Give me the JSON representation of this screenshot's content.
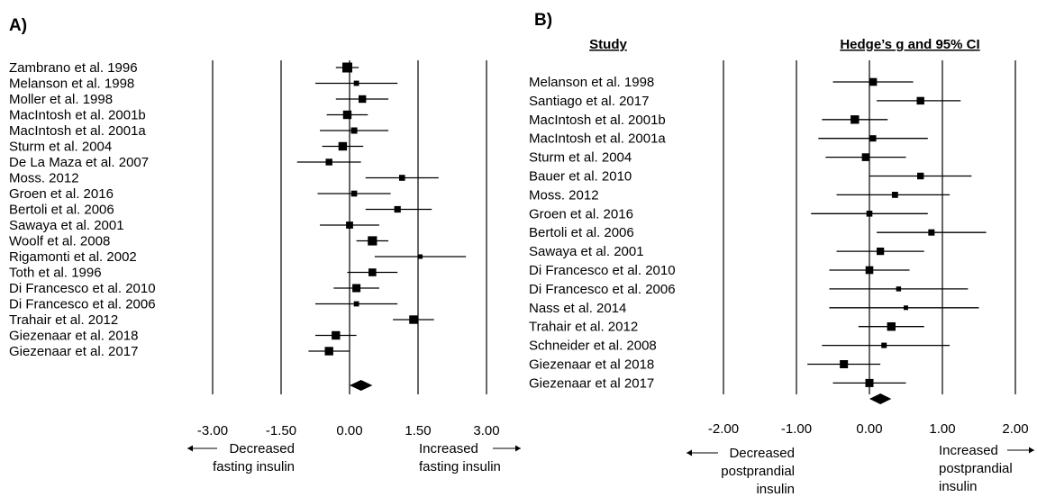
{
  "chart_data": [
    {
      "type": "forest",
      "panel_label": "A)",
      "xlim": [
        -3.0,
        3.0
      ],
      "x_ticks": [
        "-3.00",
        "-1.50",
        "0.00",
        "1.50",
        "3.00"
      ],
      "x_tick_values": [
        -3.0,
        -1.5,
        0.0,
        1.5,
        3.0
      ],
      "left_note": [
        "Decreased",
        "fasting insulin"
      ],
      "right_note": [
        "Increased",
        "fasting insulin"
      ],
      "studies": [
        {
          "label": "Zambrano et al. 1996",
          "g": -0.05,
          "lo": -0.3,
          "hi": 0.2
        },
        {
          "label": "Melanson et al. 1998",
          "g": 0.15,
          "lo": -0.75,
          "hi": 1.05
        },
        {
          "label": "Moller et al. 1998",
          "g": 0.28,
          "lo": -0.3,
          "hi": 0.85
        },
        {
          "label": "MacIntosh et al. 2001b",
          "g": -0.05,
          "lo": -0.5,
          "hi": 0.4
        },
        {
          "label": "MacIntosh et al. 2001a",
          "g": 0.1,
          "lo": -0.65,
          "hi": 0.85
        },
        {
          "label": "Sturm et al. 2004",
          "g": -0.15,
          "lo": -0.6,
          "hi": 0.3
        },
        {
          "label": "De La Maza et al. 2007",
          "g": -0.45,
          "lo": -1.15,
          "hi": 0.25
        },
        {
          "label": "Moss. 2012",
          "g": 1.15,
          "lo": 0.35,
          "hi": 1.95
        },
        {
          "label": "Groen et al. 2016",
          "g": 0.1,
          "lo": -0.7,
          "hi": 0.9
        },
        {
          "label": "Bertoli et al. 2006",
          "g": 1.05,
          "lo": 0.35,
          "hi": 1.8
        },
        {
          "label": "Sawaya et al. 2001",
          "g": 0.0,
          "lo": -0.65,
          "hi": 0.65
        },
        {
          "label": "Woolf et al. 2008",
          "g": 0.5,
          "lo": 0.15,
          "hi": 0.85
        },
        {
          "label": "Rigamonti et al. 2002",
          "g": 1.55,
          "lo": 0.55,
          "hi": 2.55
        },
        {
          "label": "Toth et al. 1996",
          "g": 0.5,
          "lo": -0.05,
          "hi": 1.05
        },
        {
          "label": "Di Francesco et al. 2010",
          "g": 0.15,
          "lo": -0.35,
          "hi": 0.65
        },
        {
          "label": "Di Francesco et al. 2006",
          "g": 0.15,
          "lo": -0.75,
          "hi": 1.05
        },
        {
          "label": "Trahair et al. 2012",
          "g": 1.4,
          "lo": 0.95,
          "hi": 1.85
        },
        {
          "label": "Giezenaar et al. 2018",
          "g": -0.3,
          "lo": -0.75,
          "hi": 0.15
        },
        {
          "label": "Giezenaar et al. 2017",
          "g": -0.45,
          "lo": -0.9,
          "hi": 0.0
        }
      ],
      "summary": {
        "g": 0.25,
        "lo": 0.0,
        "hi": 0.5
      }
    },
    {
      "type": "forest",
      "panel_label": "B)",
      "header_study": "Study",
      "header_effect": "Hedge’s g and 95% CI",
      "xlim": [
        -2.0,
        2.0
      ],
      "x_ticks": [
        "-2.00",
        "-1.00",
        "0.00",
        "1.00",
        "2.00"
      ],
      "x_tick_values": [
        -2.0,
        -1.0,
        0.0,
        1.0,
        2.0
      ],
      "left_note": [
        "Decreased",
        "postprandial",
        "insulin"
      ],
      "right_note": [
        "Increased",
        "postprandial",
        "insulin"
      ],
      "studies": [
        {
          "label": "Melanson et al. 1998",
          "g": 0.05,
          "lo": -0.5,
          "hi": 0.6
        },
        {
          "label": "Santiago et al. 2017",
          "g": 0.7,
          "lo": 0.1,
          "hi": 1.25
        },
        {
          "label": "MacIntosh et al. 2001b",
          "g": -0.2,
          "lo": -0.65,
          "hi": 0.25
        },
        {
          "label": "MacIntosh et al. 2001a",
          "g": 0.05,
          "lo": -0.7,
          "hi": 0.8
        },
        {
          "label": "Sturm et al. 2004",
          "g": -0.05,
          "lo": -0.6,
          "hi": 0.5
        },
        {
          "label": "Bauer et al. 2010",
          "g": 0.7,
          "lo": 0.0,
          "hi": 1.4
        },
        {
          "label": "Moss. 2012",
          "g": 0.35,
          "lo": -0.45,
          "hi": 1.1
        },
        {
          "label": "Groen et al. 2016",
          "g": 0.0,
          "lo": -0.8,
          "hi": 0.8
        },
        {
          "label": "Bertoli et al. 2006",
          "g": 0.85,
          "lo": 0.1,
          "hi": 1.6
        },
        {
          "label": "Sawaya et al. 2001",
          "g": 0.15,
          "lo": -0.45,
          "hi": 0.75
        },
        {
          "label": "Di Francesco et al. 2010",
          "g": 0.0,
          "lo": -0.55,
          "hi": 0.55
        },
        {
          "label": "Di Francesco et al. 2006",
          "g": 0.4,
          "lo": -0.55,
          "hi": 1.35
        },
        {
          "label": "Nass et al. 2014",
          "g": 0.5,
          "lo": -0.55,
          "hi": 1.5
        },
        {
          "label": "Trahair et al. 2012",
          "g": 0.3,
          "lo": -0.15,
          "hi": 0.75
        },
        {
          "label": "Schneider et al. 2008",
          "g": 0.2,
          "lo": -0.65,
          "hi": 1.1
        },
        {
          "label": "Giezenaar et al 2018",
          "g": -0.35,
          "lo": -0.85,
          "hi": 0.15
        },
        {
          "label": "Giezenaar et al 2017",
          "g": 0.0,
          "lo": -0.5,
          "hi": 0.5
        }
      ],
      "summary": {
        "g": 0.15,
        "lo": 0.0,
        "hi": 0.3
      }
    }
  ]
}
